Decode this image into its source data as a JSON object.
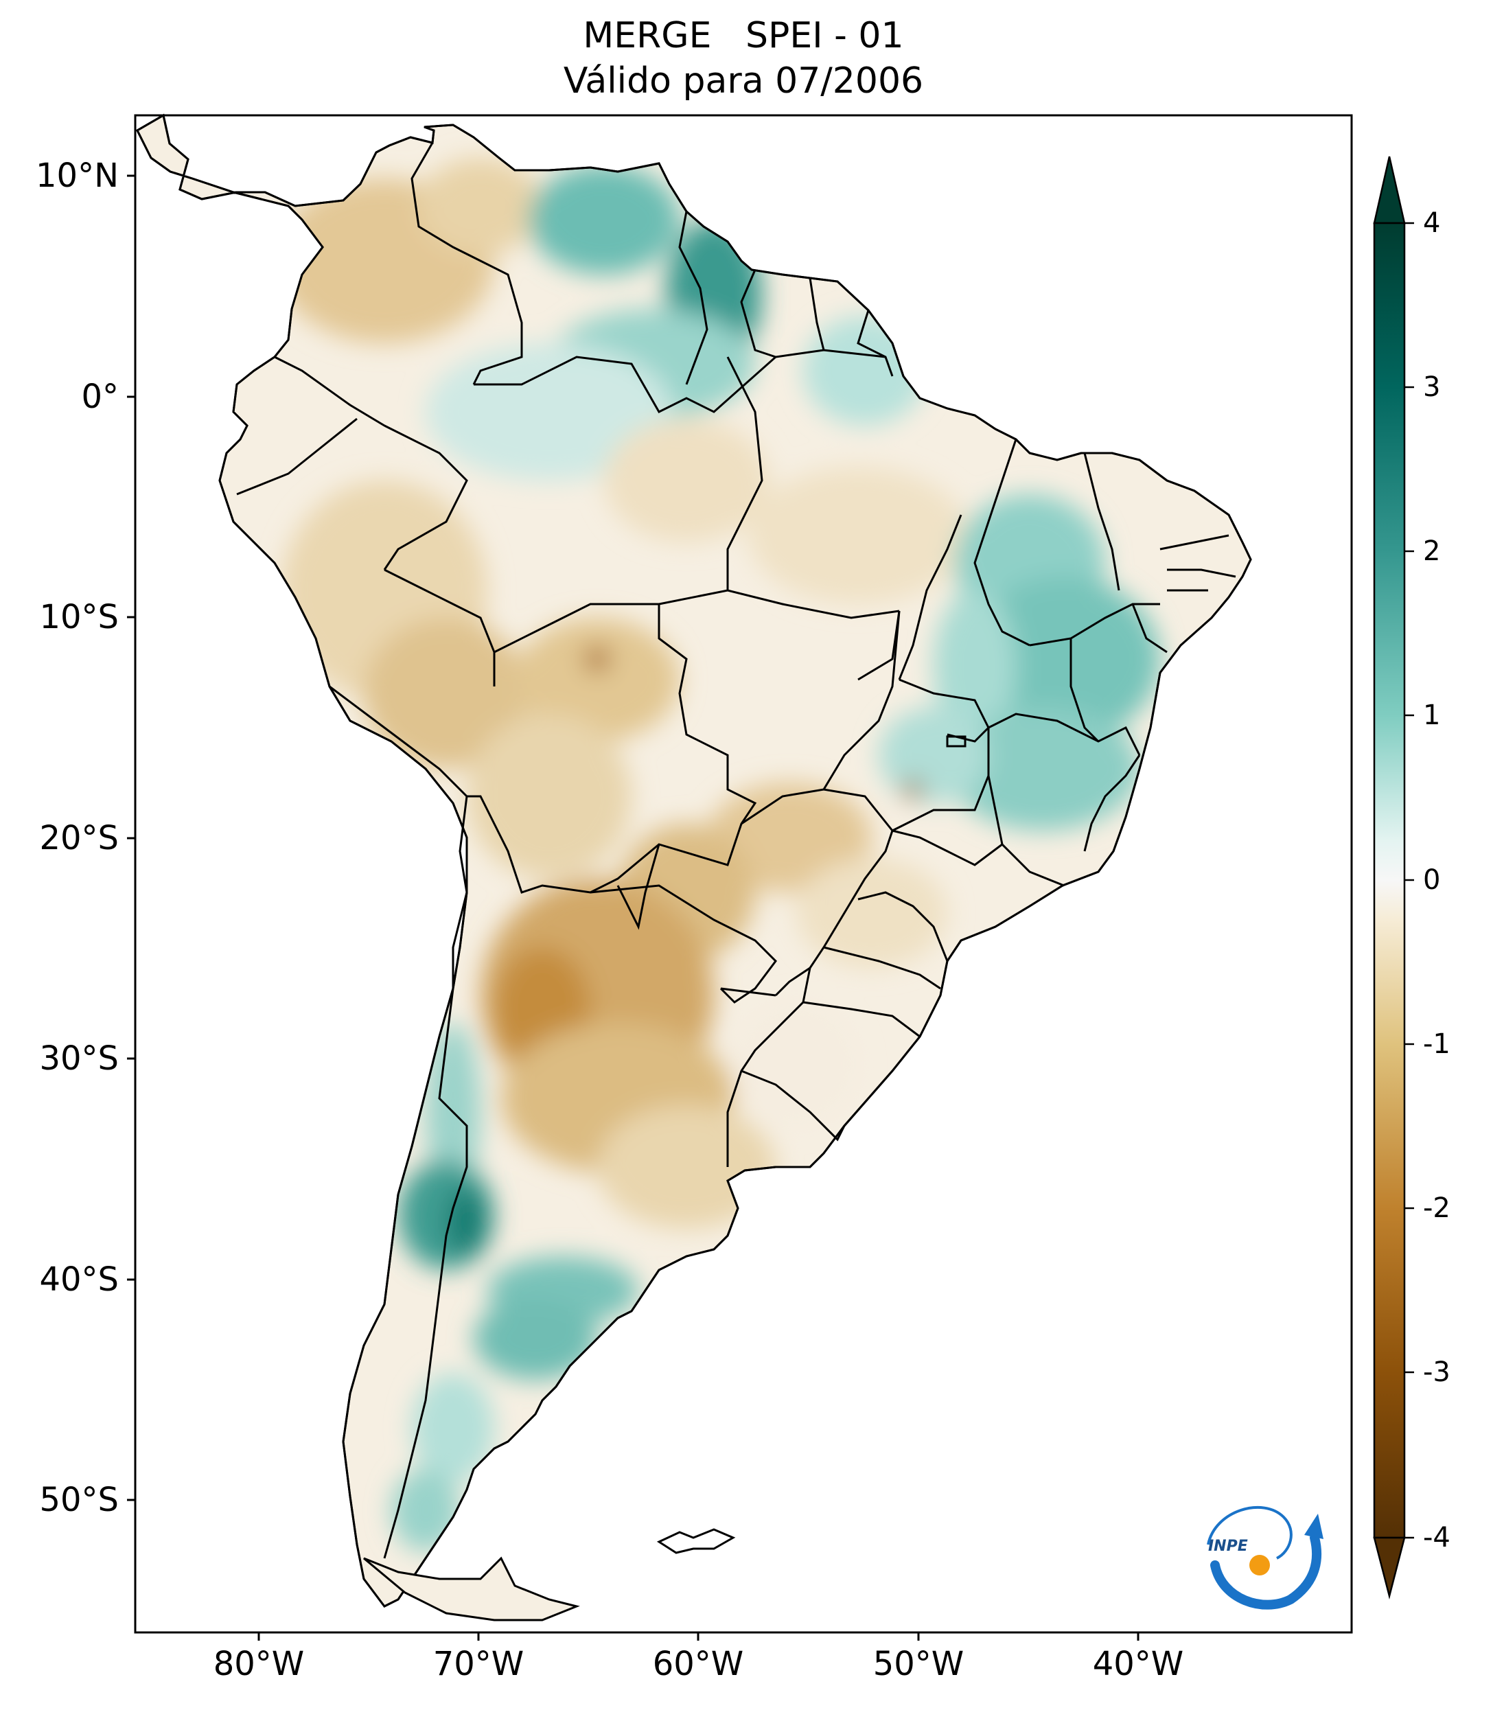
{
  "title": {
    "line1": "MERGE   SPEI - 01",
    "line2": "Válido para 07/2006"
  },
  "lat_labels": [
    "10°N",
    "0°",
    "10°S",
    "20°S",
    "30°S",
    "40°S",
    "50°S"
  ],
  "lon_labels": [
    "80°W",
    "70°W",
    "60°W",
    "50°W",
    "40°W"
  ],
  "colorbar": {
    "ticks": [
      "4",
      "3",
      "2",
      "1",
      "0",
      "-1",
      "-2",
      "-3",
      "-4"
    ],
    "min": -4,
    "max": 4,
    "colors": {
      "-4": "#543005",
      "-3": "#8c510a",
      "-2": "#bf812d",
      "-1": "#e8d2a0",
      "0": "#f7f7f7",
      "1": "#c7eae5",
      "2": "#5ab4ac",
      "3": "#01665e",
      "4": "#003c30"
    }
  },
  "logo": {
    "text": "INPE",
    "arc_color": "#1a73c8",
    "dot_color": "#f39c12"
  },
  "icons": {
    "logo": "inpe-logo-icon"
  }
}
